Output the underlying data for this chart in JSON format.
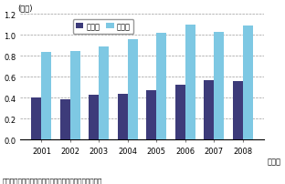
{
  "years": [
    "2001",
    "2002",
    "2003",
    "2004",
    "2005",
    "2006",
    "2007",
    "2008"
  ],
  "export": [
    0.4,
    0.38,
    0.43,
    0.44,
    0.47,
    0.52,
    0.57,
    0.56
  ],
  "import": [
    0.84,
    0.85,
    0.89,
    0.96,
    1.02,
    1.1,
    1.03,
    1.09
  ],
  "export_color": "#3d3b7a",
  "import_color": "#7ec8e3",
  "ylabel": "(兆円)",
  "year_suffix": "（年）",
  "ylim": [
    0,
    1.2
  ],
  "yticks": [
    0.0,
    0.2,
    0.4,
    0.6,
    0.8,
    1.0,
    1.2
  ],
  "legend_export": "輸出額",
  "legend_import": "輸入額",
  "footnote": "資料：厚生労働省「薬事工業生産動態統計」から作成。",
  "bar_width": 0.35
}
